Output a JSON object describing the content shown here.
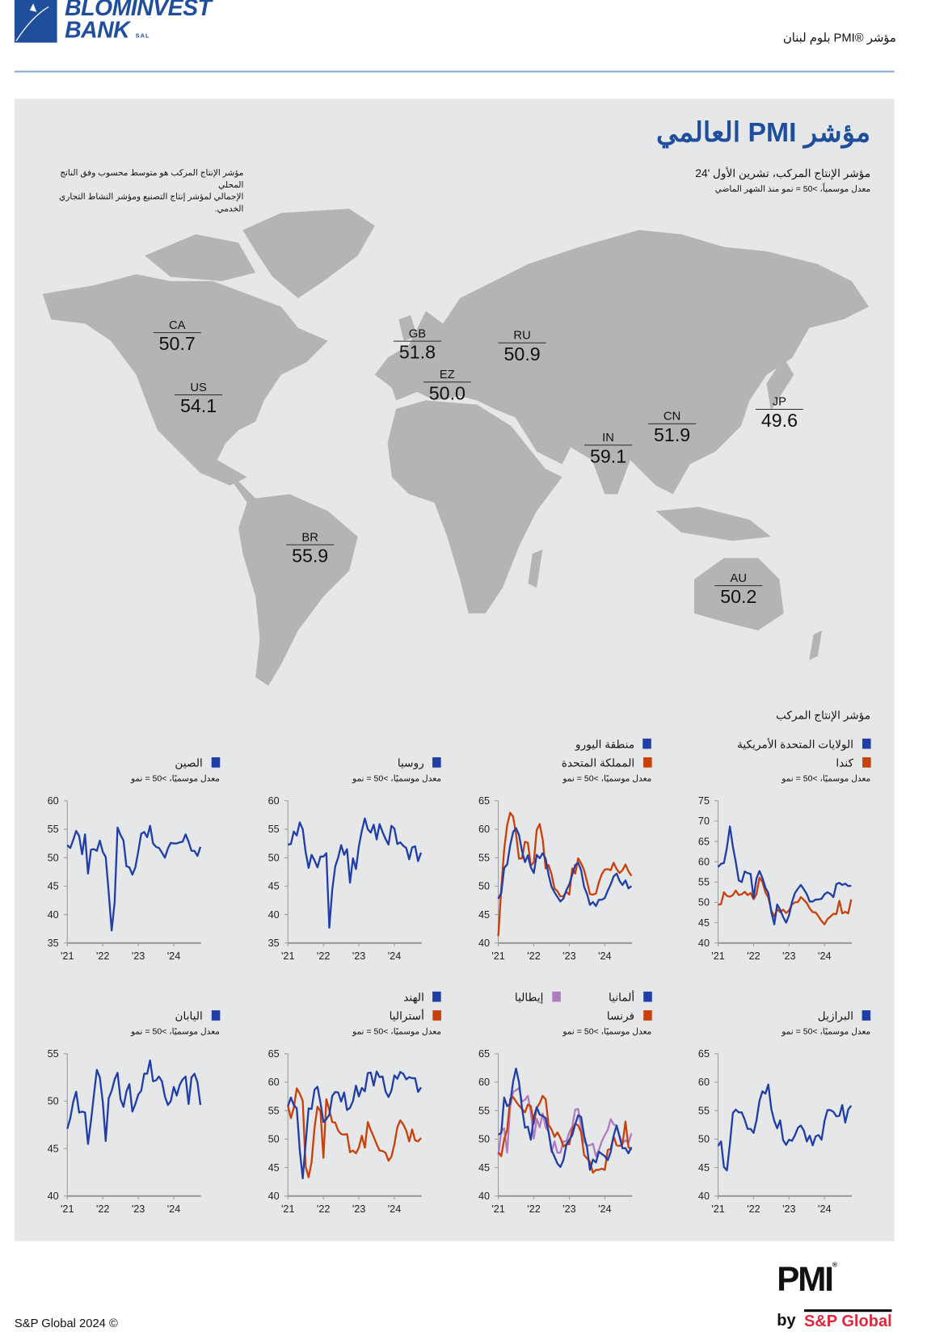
{
  "header": {
    "logo_line1": "BLOMINVEST",
    "logo_line2": "BANK",
    "logo_suffix": "SAL",
    "report_name": "مؤشر ®PMI بلوم لبنان"
  },
  "main": {
    "title": "مؤشر PMI العالمي",
    "subtitle": "مؤشر الإنتاج المركب، تشرين الأول '24",
    "subnote": "معدل موسمياً، >50 = نمو منذ الشهر الماضي",
    "left_note_1": "مؤشر الإنتاج المركب هو متوسط محسوب وفق الناتج المحلي",
    "left_note_2": "الإجمالي لمؤشر إنتاج التصنيع ومؤشر النشاط التجاري الخدمي."
  },
  "map_colors": {
    "land": "#b4b4b4",
    "background": "#e6e7e8",
    "title": "#1f4e9c"
  },
  "map_labels": [
    {
      "code": "CA",
      "value": "50.7"
    },
    {
      "code": "US",
      "value": "54.1"
    },
    {
      "code": "GB",
      "value": "51.8"
    },
    {
      "code": "EZ",
      "value": "50.0"
    },
    {
      "code": "RU",
      "value": "50.9"
    },
    {
      "code": "IN",
      "value": "59.1"
    },
    {
      "code": "CN",
      "value": "51.9"
    },
    {
      "code": "JP",
      "value": "49.6"
    },
    {
      "code": "BR",
      "value": "55.9"
    },
    {
      "code": "AU",
      "value": "50.2"
    }
  ],
  "charts_section_label": "مؤشر الإنتاج المركب",
  "chart_data": [
    {
      "type": "line",
      "subtitle": "معدل موسميًا، >50 = نمو",
      "x_start": "2021-01",
      "x_end": "2024-10",
      "x_ticks": [
        "'21",
        "'22",
        "'23",
        "'24"
      ],
      "ylim": [
        40,
        75
      ],
      "y_ticks": [
        40,
        45,
        50,
        55,
        60,
        65,
        70,
        75
      ],
      "series": [
        {
          "name": "الولايات المتحدة الأمريكية",
          "color": "#1f3ea8",
          "values": [
            58.7,
            59.5,
            59.7,
            63.5,
            68.7,
            63.7,
            59.9,
            55.4,
            55.0,
            57.6,
            57.2,
            57.0,
            51.1,
            55.9,
            57.7,
            56.0,
            53.6,
            52.3,
            47.7,
            44.6,
            49.5,
            48.2,
            46.4,
            45.0,
            46.8,
            50.1,
            52.3,
            53.4,
            54.3,
            53.2,
            52.0,
            50.2,
            50.2,
            50.7,
            50.7,
            50.9,
            52.0,
            52.5,
            52.1,
            51.3,
            54.5,
            54.8,
            54.3,
            54.6,
            54.0,
            54.1
          ]
        },
        {
          "name": "كندا",
          "color": "#c8400a",
          "values": [
            49.4,
            49.6,
            52.5,
            51.6,
            51.4,
            51.8,
            52.9,
            51.8,
            52.0,
            52.6,
            51.8,
            52.3,
            50.8,
            52.0,
            56.1,
            55.0,
            52.5,
            51.2,
            48.0,
            46.5,
            48.3,
            47.6,
            48.2,
            47.4,
            48.0,
            49.5,
            50.0,
            50.1,
            51.3,
            50.6,
            49.8,
            48.5,
            47.6,
            47.5,
            46.5,
            45.4,
            44.6,
            45.9,
            46.5,
            47.2,
            47.1,
            50.4,
            47.3,
            47.7,
            47.3,
            50.7
          ]
        }
      ]
    },
    {
      "type": "line",
      "subtitle": "معدل موسميًا، >50 = نمو",
      "x_start": "2021-01",
      "x_end": "2024-10",
      "x_ticks": [
        "'21",
        "'22",
        "'23",
        "'24"
      ],
      "ylim": [
        40,
        65
      ],
      "y_ticks": [
        40,
        45,
        50,
        55,
        60,
        65
      ],
      "series": [
        {
          "name": "منطقة اليورو",
          "color": "#1f3ea8",
          "values": [
            47.8,
            48.8,
            53.2,
            53.8,
            57.1,
            59.5,
            60.2,
            59.0,
            56.2,
            54.2,
            55.4,
            53.3,
            52.3,
            55.5,
            54.9,
            55.8,
            54.8,
            52.0,
            49.9,
            48.9,
            48.1,
            47.3,
            47.8,
            49.3,
            50.3,
            52.0,
            53.7,
            54.1,
            52.8,
            49.9,
            48.6,
            46.7,
            47.2,
            46.5,
            47.6,
            47.6,
            47.9,
            49.2,
            50.3,
            51.7,
            52.2,
            50.9,
            50.2,
            51.0,
            49.6,
            50.0
          ]
        },
        {
          "name": "المملكة المتحدة",
          "color": "#c8400a",
          "values": [
            41.2,
            49.6,
            56.4,
            60.7,
            62.9,
            62.2,
            59.2,
            54.8,
            54.9,
            57.8,
            57.6,
            53.6,
            54.2,
            59.9,
            60.9,
            58.2,
            53.1,
            53.7,
            52.1,
            49.6,
            49.1,
            48.2,
            48.2,
            49.0,
            48.5,
            53.1,
            52.2,
            54.9,
            54.0,
            52.8,
            50.8,
            48.6,
            48.5,
            48.7,
            50.7,
            52.1,
            52.9,
            53.0,
            52.8,
            54.1,
            53.0,
            52.3,
            52.8,
            53.8,
            52.6,
            51.8
          ]
        }
      ]
    },
    {
      "type": "line",
      "subtitle": "معدل موسميًا، >50 = نمو",
      "x_start": "2021-01",
      "x_end": "2024-10",
      "x_ticks": [
        "'21",
        "'22",
        "'23",
        "'24"
      ],
      "ylim": [
        35,
        60
      ],
      "y_ticks": [
        35,
        40,
        45,
        50,
        55,
        60
      ],
      "series": [
        {
          "name": "روسيا",
          "color": "#1f3ea8",
          "values": [
            52.3,
            52.4,
            54.6,
            53.9,
            56.2,
            55.0,
            51.0,
            48.2,
            50.5,
            49.5,
            48.3,
            50.2,
            50.2,
            50.8,
            37.7,
            44.4,
            48.5,
            50.0,
            52.2,
            50.5,
            51.5,
            45.6,
            49.9,
            48.0,
            52.0,
            54.7,
            56.9,
            55.0,
            54.4,
            55.8,
            53.2,
            55.9,
            54.5,
            53.3,
            52.3,
            55.6,
            55.1,
            52.4,
            52.7,
            52.1,
            51.7,
            49.7,
            51.8,
            52.0,
            49.4,
            50.9
          ]
        }
      ]
    },
    {
      "type": "line",
      "subtitle": "معدل موسميًا، >50 = نمو",
      "x_start": "2021-01",
      "x_end": "2024-10",
      "x_ticks": [
        "'21",
        "'22",
        "'23",
        "'24"
      ],
      "ylim": [
        35,
        60
      ],
      "y_ticks": [
        35,
        40,
        45,
        50,
        55,
        60
      ],
      "series": [
        {
          "name": "الصين",
          "color": "#1f3ea8",
          "values": [
            52.2,
            51.7,
            53.1,
            54.7,
            53.8,
            50.6,
            54.1,
            47.2,
            51.4,
            51.5,
            51.2,
            53.0,
            51.0,
            50.1,
            43.9,
            37.2,
            42.2,
            55.3,
            54.0,
            53.0,
            48.5,
            48.3,
            47.0,
            48.3,
            51.1,
            54.2,
            54.5,
            53.6,
            55.6,
            52.5,
            51.9,
            51.7,
            50.9,
            50.0,
            51.6,
            52.6,
            52.5,
            52.5,
            52.7,
            52.8,
            54.1,
            52.8,
            51.2,
            51.2,
            50.3,
            51.9
          ]
        }
      ]
    },
    {
      "type": "line",
      "subtitle": "معدل موسميًا، >50 = نمو",
      "x_start": "2021-01",
      "x_end": "2024-10",
      "x_ticks": [
        "'21",
        "'22",
        "'23",
        "'24"
      ],
      "ylim": [
        40,
        65
      ],
      "y_ticks": [
        40,
        45,
        50,
        55,
        60,
        65
      ],
      "series": [
        {
          "name": "البرازيل",
          "color": "#1f3ea8",
          "values": [
            48.8,
            49.6,
            45.1,
            44.5,
            49.2,
            54.6,
            55.2,
            54.7,
            54.7,
            53.4,
            51.8,
            51.8,
            51.1,
            53.3,
            56.7,
            58.4,
            58.0,
            59.6,
            55.3,
            53.2,
            51.9,
            53.3,
            49.8,
            49.0,
            49.9,
            49.7,
            50.7,
            52.0,
            52.4,
            51.5,
            49.6,
            50.6,
            48.9,
            50.5,
            50.7,
            49.9,
            53.2,
            55.1,
            55.1,
            54.8,
            54.0,
            54.1,
            56.0,
            52.9,
            55.2,
            55.9
          ]
        }
      ]
    },
    {
      "type": "line",
      "subtitle": "معدل موسميًا، >50 = نمو",
      "x_start": "2021-01",
      "x_end": "2024-10",
      "x_ticks": [
        "'21",
        "'22",
        "'23",
        "'24"
      ],
      "ylim": [
        40,
        65
      ],
      "y_ticks": [
        40,
        45,
        50,
        55,
        60,
        65
      ],
      "series": [
        {
          "name": "ألمانيا",
          "color": "#1f3ea8",
          "values": [
            50.8,
            51.1,
            57.3,
            55.8,
            56.2,
            60.1,
            62.4,
            60.0,
            55.5,
            52.0,
            52.2,
            49.9,
            53.8,
            55.6,
            54.3,
            54.1,
            53.7,
            51.3,
            48.1,
            46.9,
            45.7,
            45.1,
            46.3,
            49.0,
            49.9,
            50.7,
            52.6,
            54.2,
            53.9,
            50.6,
            48.5,
            44.6,
            46.4,
            45.9,
            47.8,
            47.4,
            47.0,
            46.3,
            47.7,
            50.6,
            52.4,
            50.4,
            48.4,
            48.4,
            47.5,
            48.6
          ]
        },
        {
          "name": "فرنسا",
          "color": "#c8400a",
          "values": [
            47.7,
            47.0,
            50.0,
            51.6,
            57.0,
            57.4,
            56.6,
            55.9,
            55.3,
            54.7,
            56.1,
            55.8,
            52.7,
            55.5,
            56.3,
            57.6,
            57.0,
            52.5,
            51.7,
            50.4,
            51.2,
            50.2,
            48.7,
            49.1,
            49.1,
            51.7,
            52.7,
            52.4,
            51.2,
            47.2,
            46.6,
            46.0,
            44.1,
            44.6,
            44.6,
            44.8,
            44.6,
            48.1,
            48.3,
            50.5,
            48.9,
            48.8,
            49.1,
            53.1,
            48.6,
            48.1
          ]
        },
        {
          "name": "إيطاليا",
          "color": "#b07cc0",
          "values": [
            47.2,
            51.4,
            51.9,
            47.6,
            55.7,
            58.3,
            58.6,
            59.0,
            56.6,
            56.9,
            57.6,
            54.7,
            50.1,
            53.6,
            52.1,
            54.5,
            52.1,
            51.3,
            47.7,
            49.6,
            47.6,
            47.6,
            49.6,
            49.6,
            51.2,
            52.2,
            55.2,
            55.3,
            52.0,
            49.6,
            48.9,
            48.9,
            49.2,
            47.0,
            48.1,
            49.6,
            50.7,
            51.6,
            53.5,
            52.6,
            52.3,
            50.5,
            49.3,
            49.8,
            49.3,
            51.0
          ]
        }
      ]
    },
    {
      "type": "line",
      "subtitle": "معدل موسميًا، >50 = نمو",
      "x_start": "2021-01",
      "x_end": "2024-10",
      "x_ticks": [
        "'21",
        "'22",
        "'23",
        "'24"
      ],
      "ylim": [
        40,
        65
      ],
      "y_ticks": [
        40,
        45,
        50,
        55,
        60,
        65
      ],
      "series": [
        {
          "name": "الهند",
          "color": "#1f3ea8",
          "values": [
            55.8,
            57.3,
            56.0,
            55.4,
            48.1,
            43.1,
            49.2,
            55.4,
            55.3,
            58.7,
            59.2,
            56.4,
            53.0,
            53.5,
            54.3,
            57.6,
            58.3,
            58.2,
            56.6,
            58.2,
            55.1,
            55.5,
            56.7,
            59.4,
            57.5,
            59.0,
            58.4,
            61.6,
            61.7,
            59.4,
            61.9,
            60.9,
            61.0,
            58.4,
            57.4,
            58.5,
            61.2,
            60.6,
            61.8,
            61.5,
            60.5,
            60.9,
            60.7,
            60.7,
            58.3,
            59.1
          ]
        },
        {
          "name": "أستراليا",
          "color": "#c8400a",
          "values": [
            55.9,
            53.7,
            55.5,
            58.9,
            58.0,
            56.7,
            45.2,
            43.3,
            46.0,
            52.1,
            55.7,
            54.9,
            46.7,
            57.0,
            55.1,
            53.0,
            52.9,
            51.5,
            50.9,
            50.8,
            50.9,
            47.7,
            48.0,
            47.5,
            48.5,
            50.6,
            48.5,
            53.0,
            51.6,
            50.4,
            49.1,
            48.0,
            47.9,
            47.6,
            46.2,
            46.9,
            49.1,
            52.1,
            53.3,
            52.6,
            51.5,
            49.6,
            51.7,
            49.8,
            49.6,
            50.2
          ]
        }
      ]
    },
    {
      "type": "line",
      "subtitle": "معدل موسميًا، >50 = نمو",
      "x_start": "2021-01",
      "x_end": "2024-10",
      "x_ticks": [
        "'21",
        "'22",
        "'23",
        "'24"
      ],
      "ylim": [
        40,
        55
      ],
      "y_ticks": [
        40,
        45,
        50,
        55
      ],
      "series": [
        {
          "name": "اليابان",
          "color": "#1f3ea8",
          "values": [
            47.1,
            48.2,
            49.9,
            51.0,
            48.8,
            48.9,
            48.8,
            45.5,
            47.9,
            50.7,
            53.3,
            52.5,
            49.9,
            45.8,
            50.3,
            51.1,
            52.3,
            53.0,
            50.2,
            49.4,
            51.0,
            51.8,
            48.9,
            49.7,
            50.7,
            51.1,
            52.9,
            52.9,
            54.3,
            52.1,
            52.2,
            52.6,
            52.1,
            50.5,
            49.6,
            50.0,
            51.5,
            50.6,
            51.7,
            52.3,
            52.6,
            49.7,
            52.5,
            52.9,
            52.0,
            49.6
          ]
        }
      ]
    }
  ],
  "footer": {
    "copyright": "S&P Global 2024 ©",
    "pmi_logo": "PMI",
    "by": "by",
    "sp_global": "S&P Global"
  }
}
